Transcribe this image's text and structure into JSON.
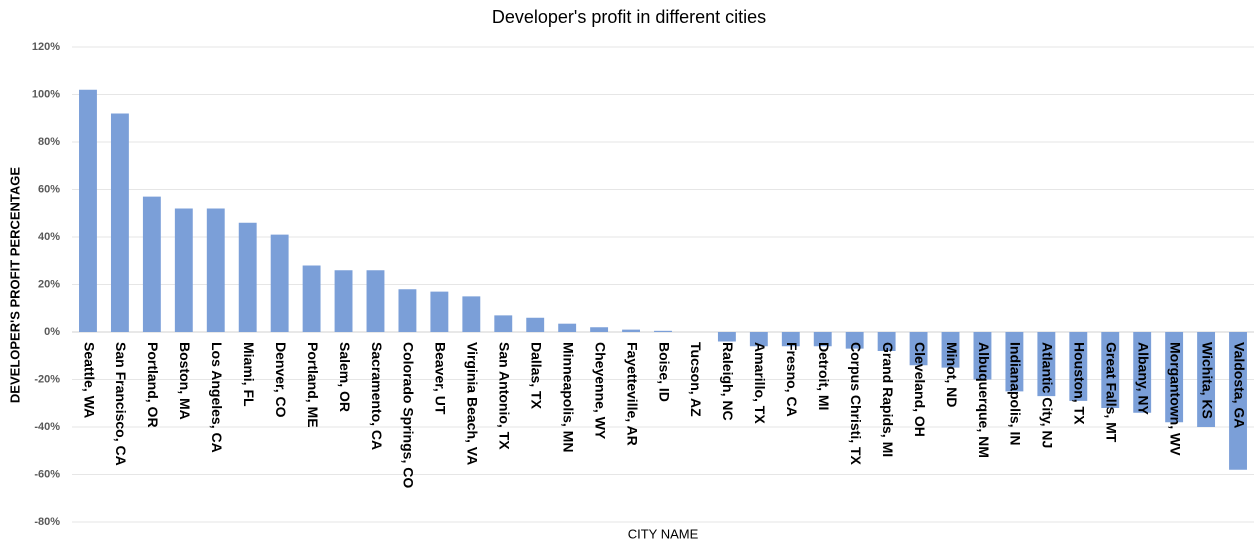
{
  "chart_data": {
    "type": "bar",
    "title": "Developer's profit in different cities",
    "x_label": "CITY NAME",
    "y_label": "DEVELOPER'S PROFIT PERCENTAGE",
    "categories": [
      "Seattle, WA",
      "San Francisco, CA",
      "Portland, OR",
      "Boston, MA",
      "Los Angeles, CA",
      "Miami, FL",
      "Denver, CO",
      "Portland, ME",
      "Salem, OR",
      "Sacramento, CA",
      "Colorado Springs, CO",
      "Beaver, UT",
      "Virginia Beach, VA",
      "San Antonio, TX",
      "Dallas, TX",
      "Minneapolis, MN",
      "Cheyenne, WY",
      "Fayetteville, AR",
      "Boise, ID",
      "Tucson, AZ",
      "Raleigh, NC",
      "Amarillo, TX",
      "Fresno, CA",
      "Detroit, MI",
      "Corpus Christi, TX",
      "Grand Rapids, MI",
      "Cleveland, OH",
      "Minot, ND",
      "Albuquerque, NM",
      "Indianapolis, IN",
      "Atlantic City, NJ",
      "Houston, TX",
      "Great Falls, MT",
      "Albany, NY",
      "Morgantown, WV",
      "Wichita, KS",
      "Valdosta, GA"
    ],
    "values": [
      102,
      92,
      57,
      52,
      52,
      46,
      41,
      28,
      26,
      26,
      18,
      17,
      15,
      7,
      6,
      3.5,
      2,
      1,
      0.5,
      0,
      -4,
      -6,
      -6,
      -6,
      -7,
      -8,
      -14,
      -15,
      -20,
      -25,
      -27,
      -29,
      -32,
      -34,
      -38,
      -40,
      -58
    ],
    "color": "#7b9fd8",
    "ylim": [
      -80,
      120
    ],
    "yticks": [
      {
        "value": -80,
        "label": "-80%"
      },
      {
        "value": -60,
        "label": "-60%"
      },
      {
        "value": -40,
        "label": "-40%"
      },
      {
        "value": -20,
        "label": "-20%"
      },
      {
        "value": 0,
        "label": "0%"
      },
      {
        "value": 20,
        "label": "20%"
      },
      {
        "value": 40,
        "label": "40%"
      },
      {
        "value": 60,
        "label": "60%"
      },
      {
        "value": 80,
        "label": "80%"
      },
      {
        "value": 100,
        "label": "100%"
      },
      {
        "value": 120,
        "label": "120%"
      }
    ],
    "grid": true
  }
}
